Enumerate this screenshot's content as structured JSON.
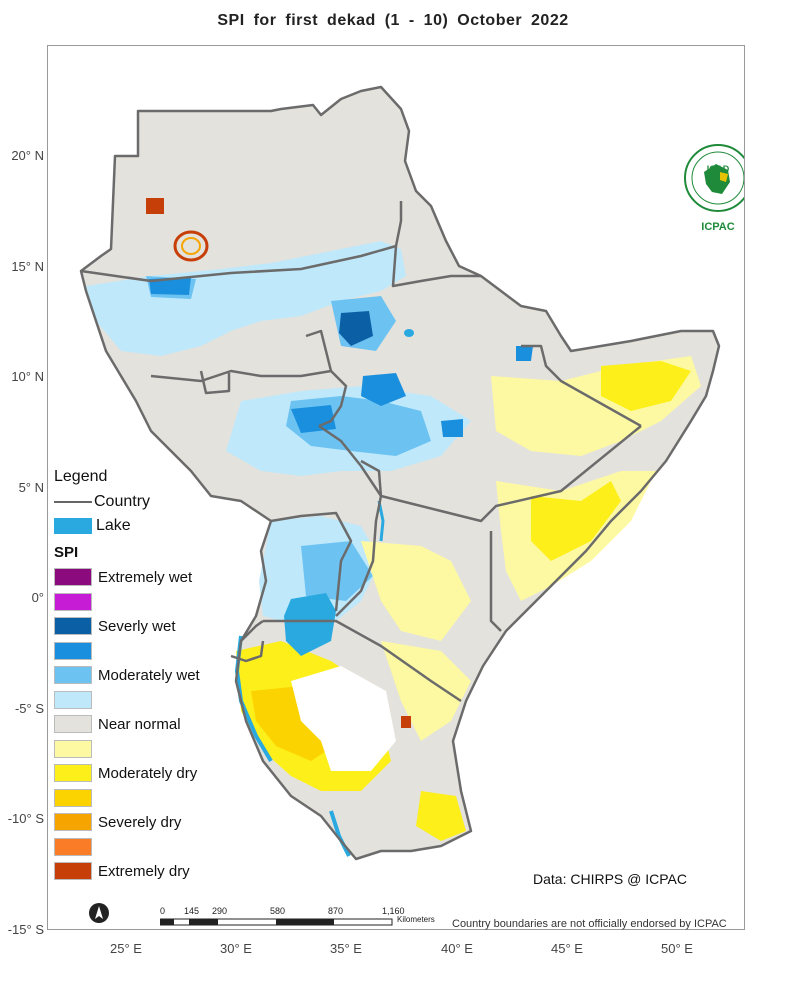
{
  "title": "SPI   for    first  dekad (1 - 10)  October 2022",
  "lat_labels": [
    "20° N",
    "15° N",
    "10° N",
    "5° N",
    "0°",
    "-5° S",
    "-10° S",
    "-15° S"
  ],
  "lon_labels": [
    "25° E",
    "30° E",
    "35° E",
    "40° E",
    "45° E",
    "50° E"
  ],
  "legend": {
    "title": "Legend",
    "country_label": "Country",
    "lake_label": "Lake",
    "spi_title": "SPI",
    "classes": [
      {
        "label": "Extremely wet",
        "color": "#8b0a7d"
      },
      {
        "label": "",
        "color": "#c71cd6"
      },
      {
        "label": "Severly wet",
        "color": "#0b5fa5"
      },
      {
        "label": "",
        "color": "#1a8fde"
      },
      {
        "label": "Moderately wet",
        "color": "#6cc3f2"
      },
      {
        "label": "",
        "color": "#bfe8fb"
      },
      {
        "label": "Near normal",
        "color": "#e4e2dc"
      },
      {
        "label": "",
        "color": "#fdf9a3"
      },
      {
        "label": "Moderately dry",
        "color": "#fcef1a"
      },
      {
        "label": "",
        "color": "#fbd300"
      },
      {
        "label": "Severely dry",
        "color": "#f6a400"
      },
      {
        "label": "",
        "color": "#fb7c27"
      },
      {
        "label": "Extremely dry",
        "color": "#c73f08"
      }
    ]
  },
  "source_text": "Data: CHIRPS @ ICPAC",
  "scalebar": {
    "ticks": [
      "0",
      "145",
      "290",
      "580",
      "870",
      "1,160"
    ],
    "units": "Kilometers"
  },
  "disclaimer": "Country boundaries are not officially endorsed by ICPAC",
  "logo": {
    "top_text": "IGAD",
    "bottom_text": "ICPAC"
  },
  "colors": {
    "near_normal": "#e4e2dc",
    "border": "#6b6b6b",
    "lake": "#29a9e0"
  }
}
